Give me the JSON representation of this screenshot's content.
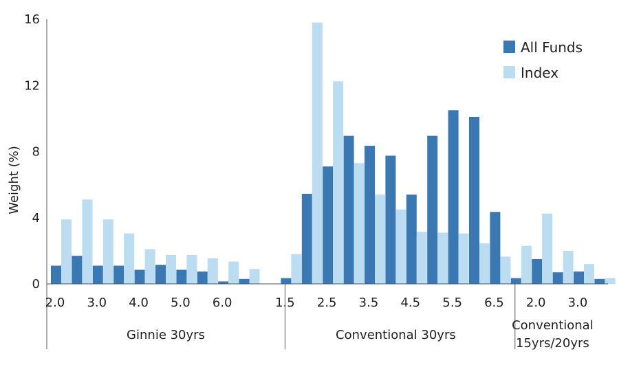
{
  "chart_data": {
    "type": "bar",
    "ylabel": "Weight (%)",
    "ylim": [
      0,
      16
    ],
    "yticks": [
      0,
      4,
      8,
      12,
      16
    ],
    "grid": false,
    "legend_position": "top-right",
    "colors": {
      "All Funds": "#3a78b4",
      "Index": "#bcdcf2"
    },
    "groups": [
      {
        "name": "Ginnie 30yrs",
        "start": 0,
        "end": 10
      },
      {
        "name": "Conventional 30yrs",
        "start": 11,
        "end": 21
      },
      {
        "name": "Conventional 15yrs/20yrs",
        "lines": [
          "Conventional",
          "15yrs/20yrs"
        ],
        "start": 22,
        "end": 25
      }
    ],
    "category_labels": [
      {
        "index": 0,
        "text": "2.0"
      },
      {
        "index": 2,
        "text": "3.0"
      },
      {
        "index": 4,
        "text": "4.0"
      },
      {
        "index": 6,
        "text": "5.0"
      },
      {
        "index": 8,
        "text": "6.0"
      },
      {
        "index": 11,
        "text": "1.5"
      },
      {
        "index": 13,
        "text": "2.5"
      },
      {
        "index": 15,
        "text": "3.5"
      },
      {
        "index": 17,
        "text": "4.5"
      },
      {
        "index": 19,
        "text": "5.5"
      },
      {
        "index": 21,
        "text": "6.5"
      },
      {
        "index": 23,
        "text": "2.0"
      },
      {
        "index": 25,
        "text": "3.0"
      }
    ],
    "series": [
      {
        "name": "All Funds",
        "values": [
          1.1,
          1.7,
          1.1,
          1.1,
          0.85,
          1.15,
          0.85,
          0.75,
          0.15,
          0.3,
          0,
          0.35,
          5.45,
          7.1,
          8.95,
          8.35,
          7.75,
          5.4,
          8.95,
          10.5,
          10.1,
          4.35,
          0.35,
          1.5,
          0.7,
          0.75,
          0.3
        ]
      },
      {
        "name": "Index",
        "values": [
          3.9,
          5.1,
          3.9,
          3.05,
          2.1,
          1.75,
          1.75,
          1.55,
          1.35,
          0.9,
          0,
          1.8,
          15.8,
          12.25,
          7.3,
          5.4,
          4.5,
          3.15,
          3.1,
          3.05,
          2.45,
          1.65,
          2.3,
          4.25,
          2.0,
          1.2,
          0.35
        ]
      }
    ]
  }
}
